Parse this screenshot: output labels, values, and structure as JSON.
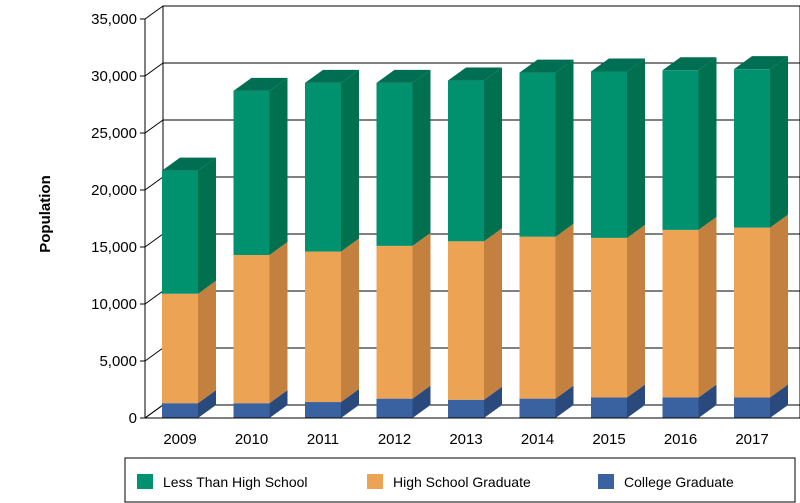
{
  "chart_data": {
    "type": "bar",
    "stacked": true,
    "three_d": true,
    "title": "",
    "xlabel": "",
    "ylabel": "Population",
    "ylim": [
      0,
      35000
    ],
    "yticks": [
      "0",
      "5,000",
      "10,000",
      "15,000",
      "20,000",
      "25,000",
      "30,000",
      "35,000"
    ],
    "grid": true,
    "legend_position": "bottom",
    "categories": [
      "2009",
      "2010",
      "2011",
      "2012",
      "2013",
      "2014",
      "2015",
      "2016",
      "2017"
    ],
    "series": [
      {
        "name": "College Graduate",
        "values": [
          1300,
          1300,
          1400,
          1700,
          1600,
          1700,
          1800,
          1800,
          1800
        ],
        "color": "#3A62A0",
        "side_color": "#2A4A7E",
        "top_color": "#4C75B5"
      },
      {
        "name": "High School Graduate",
        "values": [
          9600,
          13000,
          13200,
          13400,
          13900,
          14200,
          14000,
          14700,
          14900
        ],
        "color": "#EDA354",
        "side_color": "#C3803E",
        "top_color": "#F2B878"
      },
      {
        "name": "Less Than High School",
        "values": [
          10800,
          14400,
          14800,
          14300,
          14100,
          14400,
          14600,
          14000,
          13900
        ],
        "color": "#00916E",
        "side_color": "#00704F",
        "top_color": "#006E52"
      }
    ],
    "legend_order": [
      "Less Than High School",
      "High School Graduate",
      "College Graduate"
    ]
  }
}
